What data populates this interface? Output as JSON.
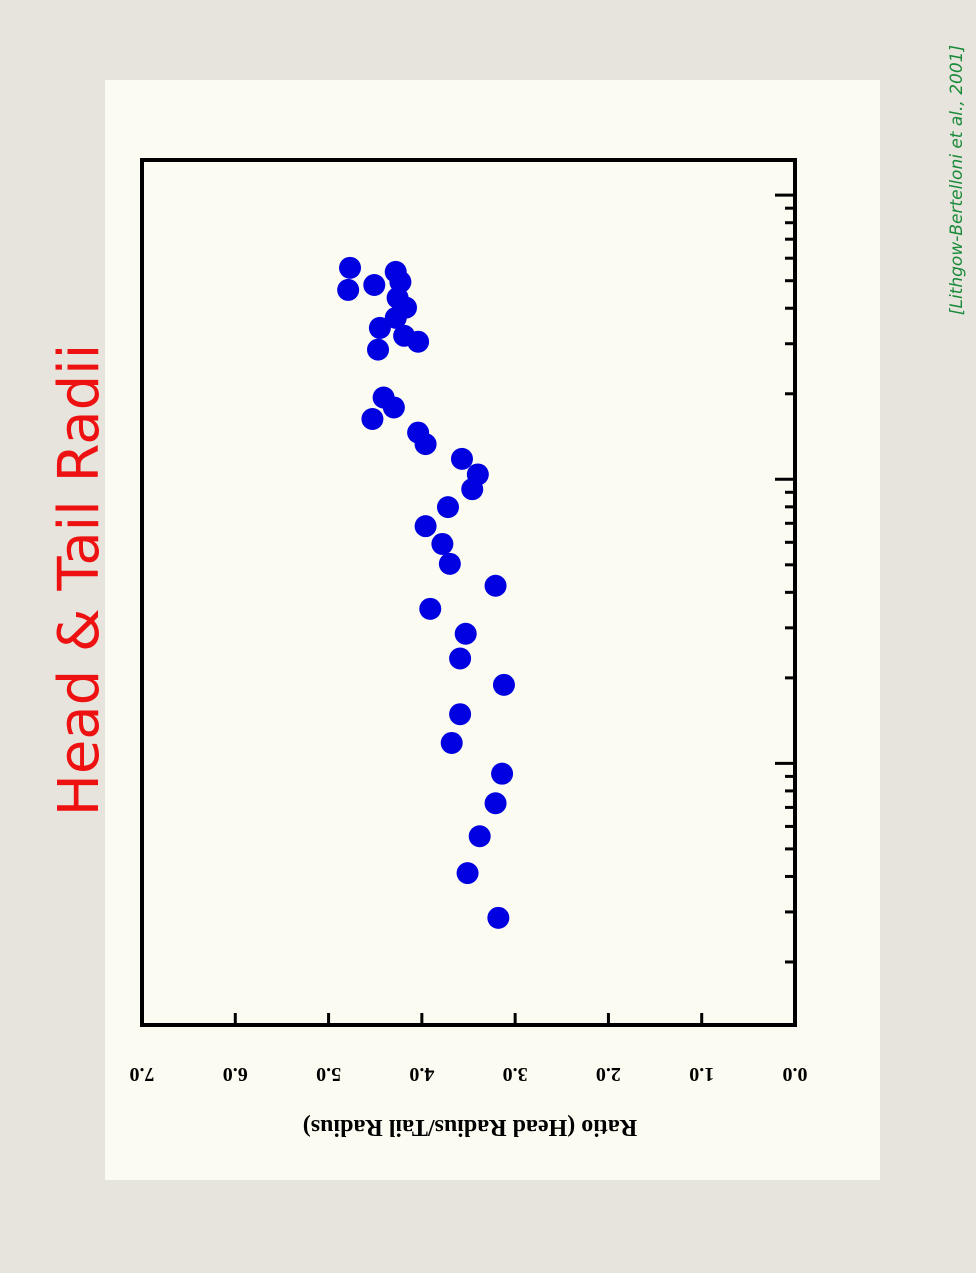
{
  "chart_data": {
    "type": "scatter",
    "title": "Head & Tail Radii",
    "citation": "[Lithgow-Bertelloni et al., 2001]",
    "y_label": "Ratio (Head Radius/Tail Radius)",
    "x_scale": "log",
    "color": "#0000e0",
    "xlim": [
      1.2,
      1330
    ],
    "xticks": [
      10,
      100,
      1000
    ],
    "ylim": [
      0,
      7
    ],
    "yticks": [
      {
        "value": 0,
        "label": "0.0"
      },
      {
        "value": 1,
        "label": "1.0"
      },
      {
        "value": 2,
        "label": "2.0"
      },
      {
        "value": 3,
        "label": "3.0"
      },
      {
        "value": 4,
        "label": "4.0"
      },
      {
        "value": 5,
        "label": "5.0"
      },
      {
        "value": 6,
        "label": "6.0"
      },
      {
        "value": 7,
        "label": "7.0"
      }
    ],
    "x": [
      2.86,
      4.11,
      5.54,
      7.24,
      9.2,
      11.8,
      14.9,
      18.9,
      23.4,
      28.6,
      35.0,
      42.2,
      50.4,
      59.2,
      68.4,
      79.8,
      92.3,
      104,
      118,
      133,
      146,
      163,
      179,
      194,
      286,
      305,
      320,
      341,
      370,
      402,
      435,
      495,
      537,
      464,
      483,
      555
    ],
    "values": [
      3.18,
      3.51,
      3.38,
      3.21,
      3.14,
      3.68,
      3.59,
      3.12,
      3.59,
      3.53,
      3.91,
      3.21,
      3.7,
      3.78,
      3.96,
      3.72,
      3.46,
      3.4,
      3.57,
      3.96,
      4.04,
      4.53,
      4.3,
      4.41,
      4.47,
      4.04,
      4.19,
      4.45,
      4.28,
      4.17,
      4.26,
      4.23,
      4.28,
      4.79,
      4.51,
      4.77
    ]
  }
}
